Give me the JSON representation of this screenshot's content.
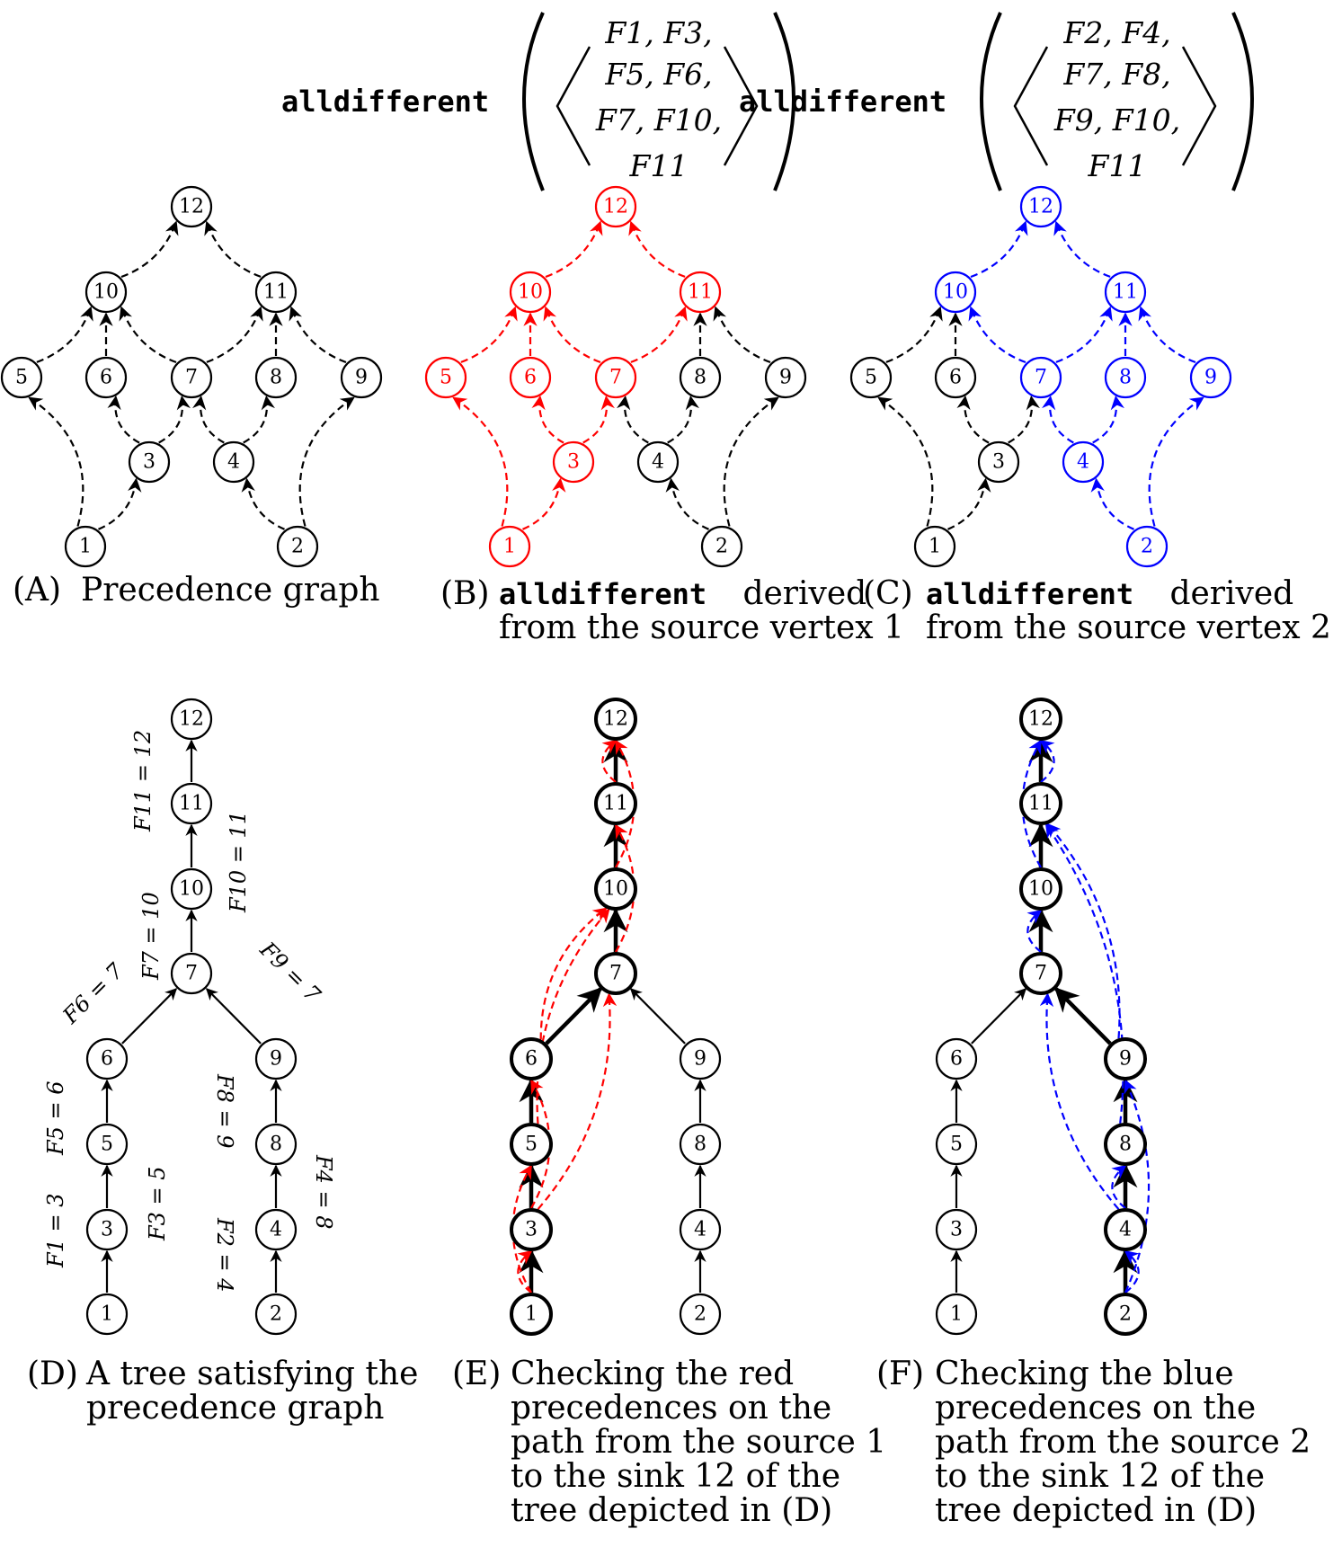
{
  "panels": {
    "A": {
      "marker": "(A)",
      "lines": [
        "Precedence graph"
      ]
    },
    "B": {
      "marker": "(B)",
      "mono": "alldifferent",
      "lines": [
        " derived",
        "from the source vertex 1"
      ]
    },
    "C": {
      "marker": "(C)",
      "mono": "alldifferent",
      "lines": [
        " derived",
        "from the source vertex 2"
      ]
    },
    "D": {
      "marker": "(D)",
      "lines": [
        "A tree satisfying the",
        "precedence graph"
      ]
    },
    "E": {
      "marker": "(E)",
      "lines": [
        "Checking the red",
        "precedences on the",
        "path from the source 1",
        "to the sink 12 of the",
        "tree depicted in (D)"
      ]
    },
    "F": {
      "marker": "(F)",
      "lines": [
        "Checking the blue",
        "precedences on the",
        "path from the source 2",
        "to the sink 12 of the",
        "tree depicted in (D)"
      ]
    }
  },
  "constraints": [
    {
      "name": "alldifferent",
      "rows": [
        "F1, F3,",
        "F5, F6,",
        "F7, F10,",
        "F11"
      ]
    },
    {
      "name": "alldifferent",
      "rows": [
        "F2, F4,",
        "F7, F8,",
        "F9, F10,",
        "F11"
      ]
    }
  ],
  "tree_labels": [
    "F1 = 3",
    "F3 = 5",
    "F5 = 6",
    "F6 = 7",
    "F7 = 10",
    "F10 = 11",
    "F11 = 12",
    "F2 = 4",
    "F4 = 8",
    "F8 = 9",
    "F9 = 7"
  ],
  "vertex_labels": [
    "1",
    "2",
    "3",
    "4",
    "5",
    "6",
    "7",
    "8",
    "9",
    "10",
    "11",
    "12"
  ],
  "colors": {
    "red": "#ff0000",
    "blue": "#0000ff",
    "black": "#000000"
  }
}
